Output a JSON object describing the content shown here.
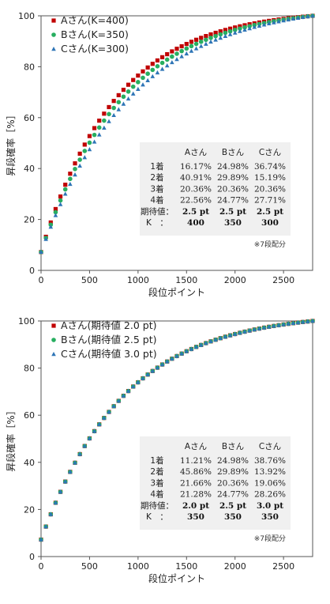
{
  "colors": {
    "A": "#c00000",
    "B": "#27ae60",
    "C": "#2e75b6",
    "table_bg": "#f0f0f0"
  },
  "chart_data": [
    {
      "type": "scatter",
      "xlabel": "段位ポイント",
      "ylabel": "昇段確率［%］",
      "xlim": [
        0,
        2800
      ],
      "ylim": [
        0,
        100
      ],
      "xticks": [
        "0",
        "500",
        "1000",
        "1500",
        "2000",
        "2500"
      ],
      "yticks": [
        "0",
        "20",
        "40",
        "60",
        "80",
        "100"
      ],
      "grid": false,
      "legend_position": "top-left",
      "series": [
        {
          "name": "Aさん(K=400)",
          "marker": "square",
          "key": "A",
          "K": 400
        },
        {
          "name": "Bさん(K=350)",
          "marker": "circle",
          "key": "B",
          "K": 350
        },
        {
          "name": "Cさん(K=300)",
          "marker": "triangle",
          "key": "C",
          "K": 300
        }
      ],
      "table": {
        "headers": [
          "",
          "Aさん",
          "Bさん",
          "Cさん"
        ],
        "rows": [
          {
            "label": "1着",
            "values": [
              "16.17%",
              "24.98%",
              "36.74%"
            ],
            "bold": false
          },
          {
            "label": "2着",
            "values": [
              "40.91%",
              "29.89%",
              "15.19%"
            ],
            "bold": false
          },
          {
            "label": "3着",
            "values": [
              "20.36%",
              "20.36%",
              "20.36%"
            ],
            "bold": false
          },
          {
            "label": "4着",
            "values": [
              "22.56%",
              "24.77%",
              "27.71%"
            ],
            "bold": false
          },
          {
            "label": "期待値：",
            "values": [
              "2.5 pt",
              "2.5 pt",
              "2.5 pt"
            ],
            "bold": true
          },
          {
            "label": "K　：",
            "values": [
              "400",
              "350",
              "300"
            ],
            "bold": true
          }
        ],
        "note": "※7段配分"
      }
    },
    {
      "type": "scatter",
      "xlabel": "段位ポイント",
      "ylabel": "昇段確率［%］",
      "xlim": [
        0,
        2800
      ],
      "ylim": [
        0,
        100
      ],
      "xticks": [
        "0",
        "500",
        "1000",
        "1500",
        "2000",
        "2500"
      ],
      "yticks": [
        "0",
        "20",
        "40",
        "60",
        "80",
        "100"
      ],
      "grid": false,
      "legend_position": "top-left",
      "series": [
        {
          "name": "Aさん(期待値 2.0 pt)",
          "marker": "square",
          "key": "A",
          "K": 350
        },
        {
          "name": "Bさん(期待値 2.5 pt)",
          "marker": "circle",
          "key": "B",
          "K": 350
        },
        {
          "name": "Cさん(期待値 3.0 pt)",
          "marker": "triangle",
          "key": "C",
          "K": 350
        }
      ],
      "table": {
        "headers": [
          "",
          "Aさん",
          "Bさん",
          "Cさん"
        ],
        "rows": [
          {
            "label": "1着",
            "values": [
              "11.21%",
              "24.98%",
              "38.76%"
            ],
            "bold": false
          },
          {
            "label": "2着",
            "values": [
              "45.86%",
              "29.89%",
              "13.92%"
            ],
            "bold": false
          },
          {
            "label": "3着",
            "values": [
              "21.66%",
              "20.36%",
              "19.06%"
            ],
            "bold": false
          },
          {
            "label": "4着",
            "values": [
              "21.28%",
              "24.77%",
              "28.26%"
            ],
            "bold": false
          },
          {
            "label": "期待値：",
            "values": [
              "2.0 pt",
              "2.5 pt",
              "3.0 pt"
            ],
            "bold": true
          },
          {
            "label": "K　：",
            "values": [
              "350",
              "350",
              "350"
            ],
            "bold": true
          }
        ],
        "note": "※7段配分"
      }
    }
  ]
}
